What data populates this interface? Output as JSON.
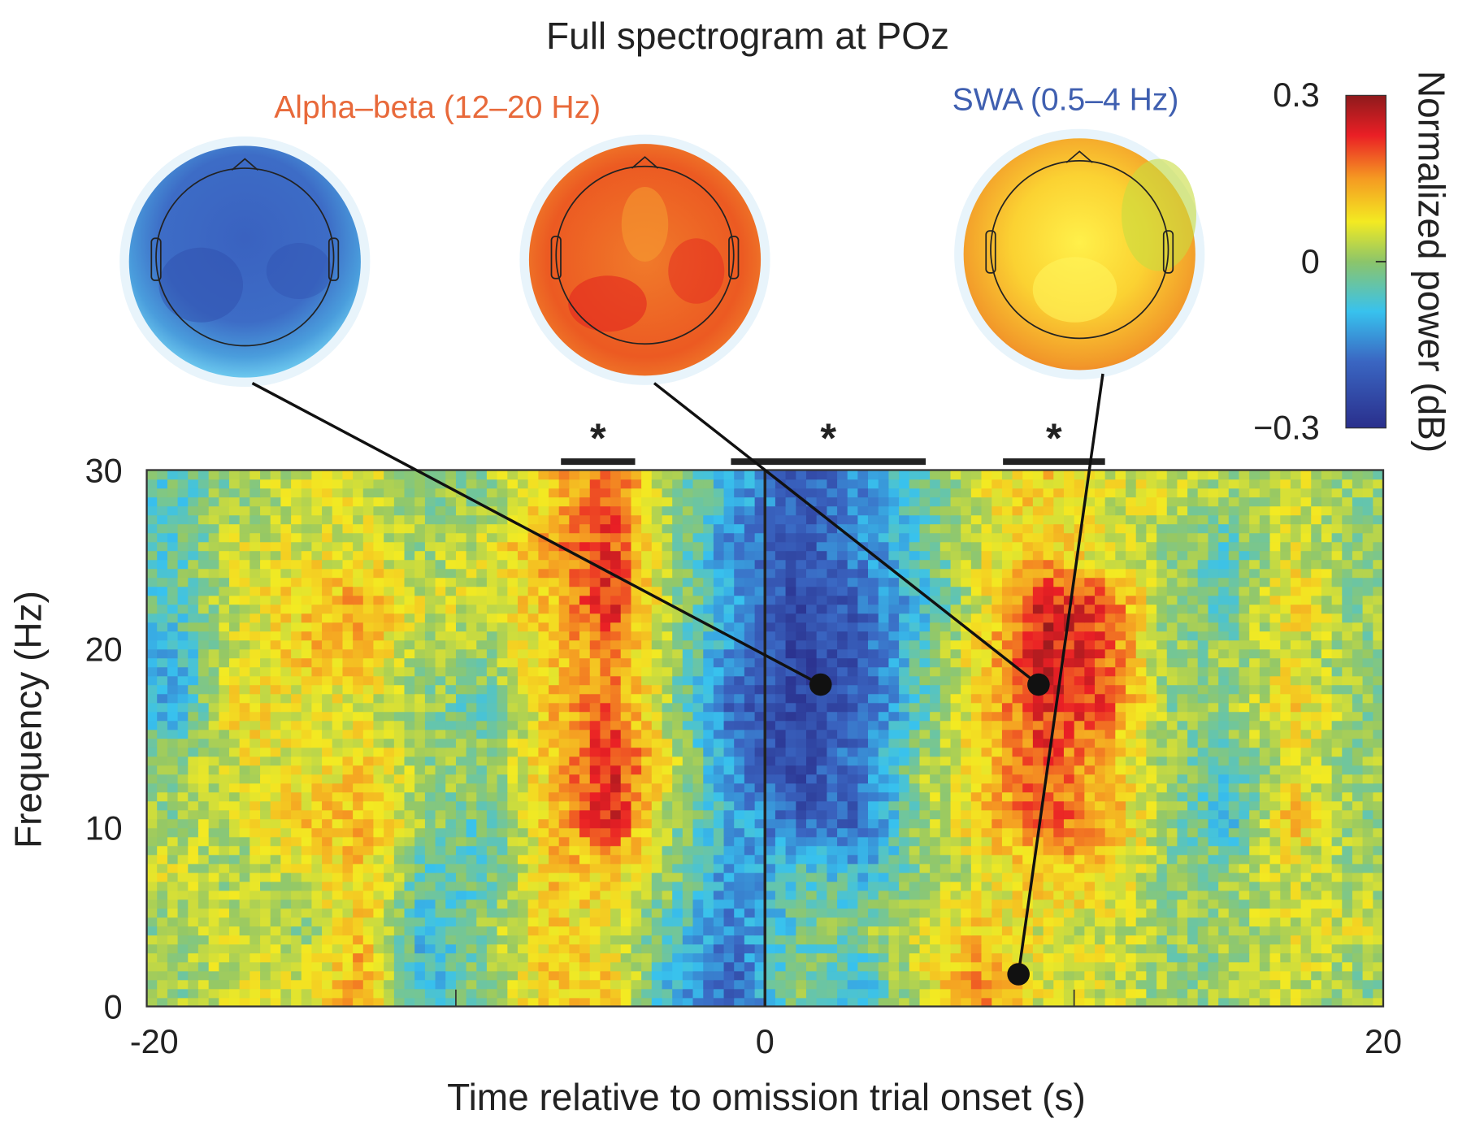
{
  "chart_data": {
    "type": "heatmap",
    "title": "Full spectrogram at POz",
    "xlabel": "Time relative to omission trial onset (s)",
    "ylabel": "Frequency (Hz)",
    "xlim": [
      -20,
      20
    ],
    "ylim": [
      0,
      30
    ],
    "xticks": [
      "-20",
      "0",
      "20"
    ],
    "xtick_values": [
      -20,
      0,
      20
    ],
    "xminor_ticks": [
      -10,
      10
    ],
    "yticks": [
      "0",
      "10",
      "20",
      "30"
    ],
    "ytick_values": [
      0,
      10,
      20,
      30
    ],
    "onset_line_x": 0,
    "colorbar": {
      "label": "Normalized power (dB)",
      "range": [
        -0.3,
        0.3
      ],
      "ticks": [
        "0.3",
        "0",
        "−0.3"
      ],
      "colormap": "jet"
    },
    "grid_time_centers_s": [
      -19,
      -17,
      -15,
      -13,
      -11,
      -9,
      -7,
      -5,
      -3,
      -1,
      1,
      3,
      5,
      7,
      9,
      11,
      13,
      15,
      17,
      19
    ],
    "grid_freq_centers_hz": [
      28.5,
      25.5,
      22.5,
      19.5,
      16.5,
      13.5,
      10.5,
      7.5,
      4.5,
      1.5
    ],
    "grid_values_db": [
      [
        -0.05,
        0,
        0.05,
        0.05,
        0,
        0,
        0.1,
        0.2,
        0,
        -0.1,
        -0.2,
        -0.15,
        -0.05,
        0.05,
        0.1,
        0.05,
        0.05,
        0,
        0.05,
        0
      ],
      [
        -0.05,
        0.05,
        0.05,
        0.05,
        0,
        0.05,
        0.15,
        0.22,
        0,
        -0.15,
        -0.22,
        -0.15,
        -0.05,
        0.05,
        0.1,
        0.05,
        0,
        -0.05,
        0.05,
        0
      ],
      [
        -0.05,
        0.05,
        0.1,
        0.15,
        0.05,
        0.05,
        0.1,
        0.25,
        0,
        -0.1,
        -0.25,
        -0.2,
        -0.1,
        0.05,
        0.25,
        0.2,
        0,
        -0.05,
        0.1,
        0
      ],
      [
        -0.1,
        0.05,
        0.1,
        0.12,
        0,
        0,
        0.1,
        0.15,
        0,
        -0.15,
        -0.25,
        -0.22,
        -0.05,
        0.1,
        0.25,
        0.2,
        0,
        0,
        0.05,
        0
      ],
      [
        -0.1,
        0.1,
        0.05,
        0.05,
        0,
        -0.05,
        0.1,
        0.2,
        0,
        -0.2,
        -0.25,
        -0.2,
        -0.05,
        0.1,
        0.22,
        0.2,
        0,
        0,
        0.1,
        0
      ],
      [
        0,
        0.05,
        0.05,
        0.1,
        0,
        0,
        0.1,
        0.25,
        0.05,
        -0.15,
        -0.25,
        -0.15,
        0,
        0.1,
        0.2,
        0.1,
        0,
        -0.05,
        0.05,
        0
      ],
      [
        0,
        0.05,
        0.1,
        0.12,
        0,
        -0.05,
        0.1,
        0.25,
        0,
        -0.1,
        -0.2,
        -0.2,
        0,
        0.1,
        0.2,
        0.15,
        0,
        -0.1,
        0.12,
        0
      ],
      [
        0.05,
        0,
        0.05,
        0.1,
        -0.05,
        -0.05,
        0.1,
        0.1,
        0,
        -0.15,
        -0.05,
        -0.1,
        0,
        0.05,
        0.1,
        0.1,
        0,
        0,
        0.05,
        0
      ],
      [
        0,
        0.05,
        0,
        0.1,
        -0.1,
        0,
        0.1,
        0.05,
        -0.05,
        -0.15,
        -0.05,
        0,
        0.05,
        0.1,
        0.05,
        0.05,
        0,
        0,
        0.05,
        0.05
      ],
      [
        0,
        0.05,
        0.05,
        0.15,
        -0.1,
        0,
        0.1,
        0.1,
        -0.1,
        -0.2,
        0,
        -0.1,
        0.05,
        0.15,
        0.05,
        0.05,
        0,
        0,
        0.05,
        0
      ]
    ],
    "significance": [
      {
        "label": "*",
        "t_start": -6.6,
        "t_end": -4.2
      },
      {
        "label": "*",
        "t_start": -1.1,
        "t_end": 5.2
      },
      {
        "label": "*",
        "t_start": 7.7,
        "t_end": 11.0
      }
    ],
    "annotations": [
      {
        "label": "",
        "topomap": "blue-topomap",
        "t": 1.8,
        "f": 18.0
      },
      {
        "label": "Alpha–beta (12–20 Hz)",
        "color": "#e8693a",
        "topomap": "orange-topomap",
        "t": 8.85,
        "f": 18.0
      },
      {
        "label": "SWA (0.5–4 Hz)",
        "color": "#3f5fb0",
        "topomap": "yellow-topomap",
        "t": 8.2,
        "f": 1.8
      }
    ]
  }
}
